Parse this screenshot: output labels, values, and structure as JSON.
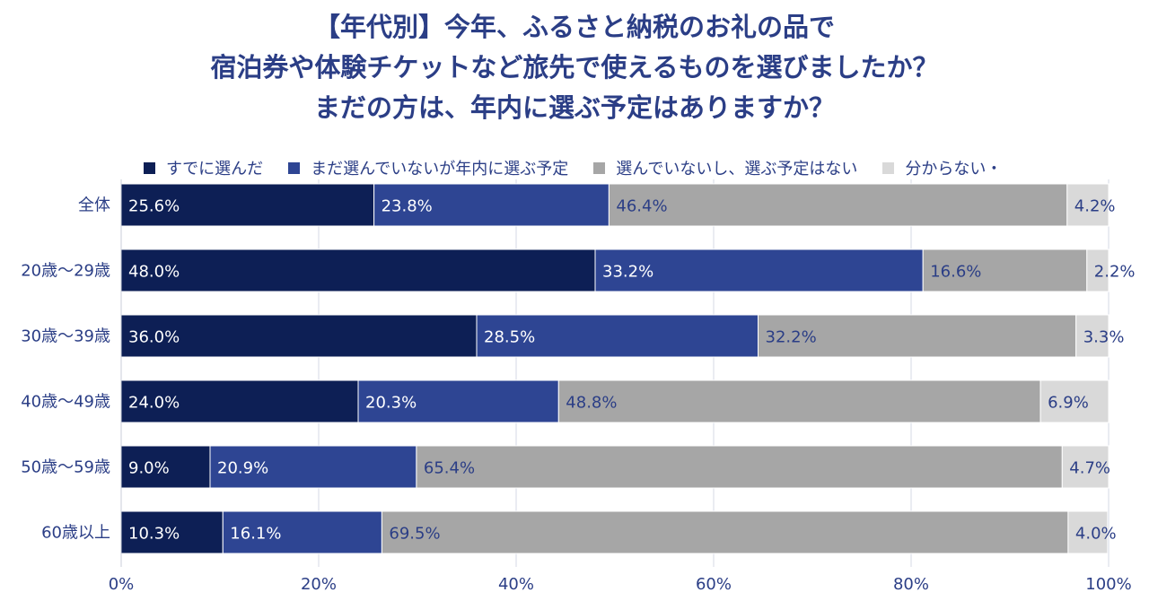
{
  "chart_data": {
    "type": "bar",
    "orientation": "horizontal",
    "stacked": true,
    "title_lines": [
      "【年代別】今年、ふるさと納税のお礼の品で",
      "宿泊券や体験チケットなど旅先で使えるものを選びましたか？",
      "まだの方は、年内に選ぶ予定はありますか？"
    ],
    "categories": [
      "全体",
      "20歳〜29歳",
      "30歳〜39歳",
      "40歳〜49歳",
      "50歳〜59歳",
      "60歳以上"
    ],
    "series": [
      {
        "name": "すでに選んだ",
        "color": "#0d1f55",
        "label_color": "#ffffff",
        "values": [
          25.6,
          48.0,
          36.0,
          24.0,
          9.0,
          10.3
        ],
        "labels": [
          "25.6%",
          "48.0%",
          "36.0%",
          "24.0%",
          "9.0%",
          "10.3%"
        ]
      },
      {
        "name": "まだ選んでいないが年内に選ぶ予定",
        "color": "#2e4593",
        "label_color": "#ffffff",
        "values": [
          23.8,
          33.2,
          28.5,
          20.3,
          20.9,
          16.1
        ],
        "labels": [
          "23.8%",
          "33.2%",
          "28.5%",
          "20.3%",
          "20.9%",
          "16.1%"
        ]
      },
      {
        "name": "選んでいないし、選ぶ予定はない",
        "color": "#a6a6a6",
        "label_color": "#2b3e86",
        "values": [
          46.4,
          16.6,
          32.2,
          48.8,
          65.4,
          69.5
        ],
        "labels": [
          "46.4%",
          "16.6%",
          "32.2%",
          "48.8%",
          "65.4%",
          "69.5%"
        ]
      },
      {
        "name": "分からない・",
        "color": "#d9d9d9",
        "label_color": "#2b3e86",
        "values": [
          4.2,
          2.2,
          3.3,
          6.9,
          4.7,
          4.0
        ],
        "labels": [
          "4.2%",
          "2.2%",
          "3.3%",
          "6.9%",
          "4.7%",
          "4.0%"
        ]
      }
    ],
    "xlim": [
      0,
      100
    ],
    "xticks": [
      "0%",
      "20%",
      "40%",
      "60%",
      "80%",
      "100%"
    ],
    "grid": true,
    "legend_position": "top"
  }
}
